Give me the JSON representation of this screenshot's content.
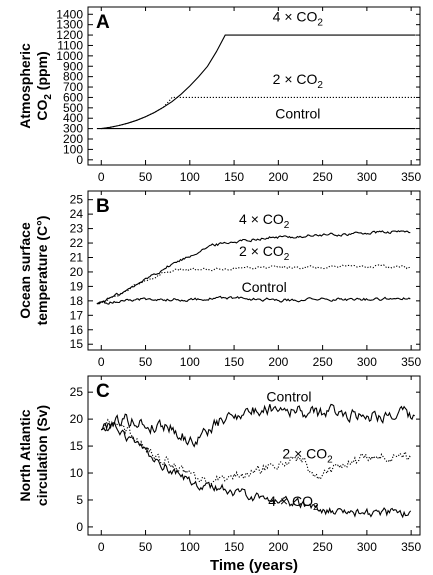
{
  "chart_data": [
    {
      "type": "line",
      "panel_label": "A",
      "ylabel_line1": "Atmospheric",
      "ylabel_line2_pre": "CO",
      "ylabel_line2_sub": "2",
      "ylabel_line2_post": " (ppm)",
      "xlim": [
        -15,
        360
      ],
      "ylim": [
        -50,
        1470
      ],
      "x_ticks": [
        0,
        50,
        100,
        150,
        200,
        250,
        300,
        350
      ],
      "y_ticks": [
        0,
        100,
        200,
        300,
        400,
        500,
        600,
        700,
        800,
        900,
        1000,
        1100,
        1200,
        1300,
        1400
      ],
      "series": [
        {
          "key": "4co2",
          "style": "solid",
          "points": [
            [
              0,
              300
            ],
            [
              10,
              313
            ],
            [
              20,
              330
            ],
            [
              30,
              352
            ],
            [
              40,
              380
            ],
            [
              50,
              415
            ],
            [
              60,
              455
            ],
            [
              70,
              505
            ],
            [
              80,
              560
            ],
            [
              90,
              630
            ],
            [
              100,
              710
            ],
            [
              110,
              800
            ],
            [
              120,
              900
            ],
            [
              130,
              1040
            ],
            [
              140,
              1200
            ],
            [
              355,
              1200
            ]
          ]
        },
        {
          "key": "2co2",
          "style": "dotted",
          "points": [
            [
              0,
              300
            ],
            [
              10,
              313
            ],
            [
              20,
              330
            ],
            [
              30,
              352
            ],
            [
              40,
              380
            ],
            [
              50,
              415
            ],
            [
              60,
              455
            ],
            [
              70,
              505
            ],
            [
              76,
              560
            ],
            [
              80,
              600
            ],
            [
              355,
              600
            ]
          ]
        },
        {
          "key": "control",
          "style": "solid",
          "points": [
            [
              -5,
              300
            ],
            [
              355,
              300
            ]
          ]
        }
      ],
      "annotations": [
        {
          "pre": "4 × CO",
          "sub": "2",
          "x": 222,
          "y": 1330
        },
        {
          "pre": "2 × CO",
          "sub": "2",
          "x": 222,
          "y": 730
        },
        {
          "pre": "Control",
          "sub": "",
          "x": 222,
          "y": 395
        }
      ]
    },
    {
      "type": "line",
      "panel_label": "B",
      "ylabel_line1": "Ocean surface",
      "ylabel_line2_pre": "temperature (C°)",
      "ylabel_line2_sub": "",
      "ylabel_line2_post": "",
      "xlim": [
        -15,
        360
      ],
      "ylim": [
        14.6,
        25.6
      ],
      "x_ticks": [
        0,
        50,
        100,
        150,
        200,
        250,
        300,
        350
      ],
      "y_ticks": [
        15,
        16,
        17,
        18,
        19,
        20,
        21,
        22,
        23,
        24,
        25
      ],
      "series": [
        {
          "key": "4co2",
          "style": "solid",
          "noise": 0.09,
          "points": [
            [
              -5,
              17.8
            ],
            [
              10,
              18.2
            ],
            [
              25,
              18.6
            ],
            [
              40,
              19.1
            ],
            [
              55,
              19.7
            ],
            [
              70,
              20.2
            ],
            [
              85,
              20.7
            ],
            [
              100,
              21.1
            ],
            [
              115,
              21.6
            ],
            [
              130,
              21.9
            ],
            [
              150,
              22.1
            ],
            [
              175,
              22.3
            ],
            [
              200,
              22.4
            ],
            [
              225,
              22.45
            ],
            [
              250,
              22.55
            ],
            [
              275,
              22.6
            ],
            [
              300,
              22.7
            ],
            [
              325,
              22.75
            ],
            [
              350,
              22.8
            ]
          ]
        },
        {
          "key": "2co2",
          "style": "dotted",
          "noise": 0.08,
          "points": [
            [
              -5,
              17.8
            ],
            [
              10,
              18.2
            ],
            [
              25,
              18.6
            ],
            [
              40,
              19.1
            ],
            [
              55,
              19.5
            ],
            [
              70,
              19.9
            ],
            [
              85,
              20.1
            ],
            [
              100,
              20.2
            ],
            [
              130,
              20.2
            ],
            [
              160,
              20.3
            ],
            [
              200,
              20.35
            ],
            [
              250,
              20.3
            ],
            [
              300,
              20.4
            ],
            [
              350,
              20.3
            ]
          ]
        },
        {
          "key": "control",
          "style": "solid",
          "noise": 0.09,
          "points": [
            [
              -5,
              17.8
            ],
            [
              40,
              18.1
            ],
            [
              100,
              18.1
            ],
            [
              150,
              18.2
            ],
            [
              200,
              18.05
            ],
            [
              250,
              18.1
            ],
            [
              300,
              18.1
            ],
            [
              350,
              18.2
            ]
          ]
        }
      ],
      "annotations": [
        {
          "pre": "4 × CO",
          "sub": "2",
          "x": 184,
          "y": 23.3
        },
        {
          "pre": "2 × CO",
          "sub": "2",
          "x": 184,
          "y": 21.1
        },
        {
          "pre": "Control",
          "sub": "",
          "x": 184,
          "y": 18.6
        }
      ]
    },
    {
      "type": "line",
      "panel_label": "C",
      "ylabel_line1": "North Atlantic",
      "ylabel_line2_pre": "circulation (Sv)",
      "ylabel_line2_sub": "",
      "ylabel_line2_post": "",
      "xlim": [
        -15,
        360
      ],
      "ylim": [
        -1.5,
        28
      ],
      "x_ticks": [
        0,
        50,
        100,
        150,
        200,
        250,
        300,
        350
      ],
      "y_ticks": [
        0,
        5,
        10,
        15,
        20,
        25
      ],
      "xlabel": "Time (years)",
      "series": [
        {
          "key": "control",
          "style": "solid",
          "noise": 1.0,
          "points": [
            [
              0,
              18
            ],
            [
              10,
              19.5
            ],
            [
              25,
              20
            ],
            [
              40,
              19.5
            ],
            [
              55,
              18.5
            ],
            [
              70,
              19
            ],
            [
              80,
              18.5
            ],
            [
              90,
              17
            ],
            [
              100,
              15.8
            ],
            [
              110,
              16.5
            ],
            [
              125,
              18.5
            ],
            [
              140,
              20
            ],
            [
              160,
              21.5
            ],
            [
              175,
              21.5
            ],
            [
              190,
              22
            ],
            [
              200,
              22.5
            ],
            [
              220,
              21.5
            ],
            [
              240,
              21
            ],
            [
              260,
              21.5
            ],
            [
              280,
              21
            ],
            [
              300,
              20.8
            ],
            [
              320,
              20.8
            ],
            [
              340,
              21
            ],
            [
              355,
              20
            ]
          ]
        },
        {
          "key": "2co2",
          "style": "dotted",
          "noise": 0.8,
          "points": [
            [
              0,
              18
            ],
            [
              10,
              19.2
            ],
            [
              25,
              18
            ],
            [
              40,
              16.5
            ],
            [
              55,
              14
            ],
            [
              70,
              12.5
            ],
            [
              85,
              11
            ],
            [
              100,
              9.5
            ],
            [
              115,
              8.3
            ],
            [
              130,
              8.5
            ],
            [
              150,
              9.5
            ],
            [
              170,
              10
            ],
            [
              190,
              11
            ],
            [
              205,
              12
            ],
            [
              215,
              13
            ],
            [
              230,
              12
            ],
            [
              240,
              9
            ],
            [
              255,
              10
            ],
            [
              270,
              11.5
            ],
            [
              290,
              12.5
            ],
            [
              310,
              13
            ],
            [
              330,
              13
            ],
            [
              350,
              12.8
            ]
          ]
        },
        {
          "key": "4co2",
          "style": "solid",
          "noise": 0.7,
          "points": [
            [
              0,
              18
            ],
            [
              10,
              18.8
            ],
            [
              25,
              17
            ],
            [
              40,
              15
            ],
            [
              55,
              13
            ],
            [
              70,
              11.5
            ],
            [
              85,
              10
            ],
            [
              100,
              8.5
            ],
            [
              115,
              7.5
            ],
            [
              130,
              7.2
            ],
            [
              150,
              6.5
            ],
            [
              175,
              5.5
            ],
            [
              200,
              5
            ],
            [
              225,
              4.2
            ],
            [
              250,
              3.3
            ],
            [
              275,
              2.8
            ],
            [
              300,
              2.6
            ],
            [
              325,
              2.6
            ],
            [
              350,
              2.5
            ]
          ]
        }
      ],
      "annotations": [
        {
          "pre": "Control",
          "sub": "",
          "x": 212,
          "y": 23.3
        },
        {
          "pre": "2 × CO",
          "sub": "2",
          "x": 233,
          "y": 12.7
        },
        {
          "pre": "4 × CO",
          "sub": "2",
          "x": 217,
          "y": 3.9
        }
      ]
    }
  ]
}
